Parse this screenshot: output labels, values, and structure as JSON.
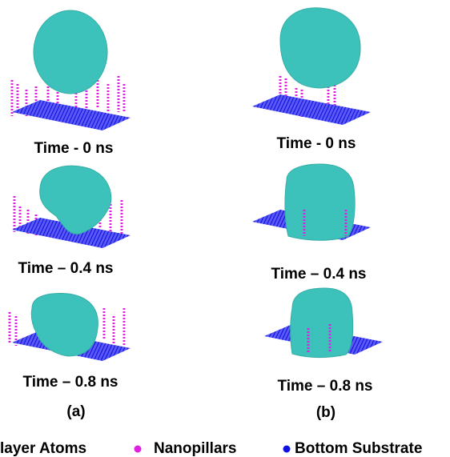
{
  "panels": [
    {
      "label": "(a)",
      "snapshots": [
        {
          "caption": "Time - 0 ns"
        },
        {
          "caption": "Time – 0.4 ns"
        },
        {
          "caption": "Time – 0.8 ns"
        }
      ]
    },
    {
      "label": "(b)",
      "snapshots": [
        {
          "caption": "Time - 0 ns"
        },
        {
          "caption": "Time – 0.4 ns"
        },
        {
          "caption": "Time – 0.8 ns"
        }
      ]
    }
  ],
  "legend": [
    {
      "label": "layer Atoms"
    },
    {
      "label": "Nanopillars"
    },
    {
      "label": "Bottom Substrate"
    }
  ]
}
